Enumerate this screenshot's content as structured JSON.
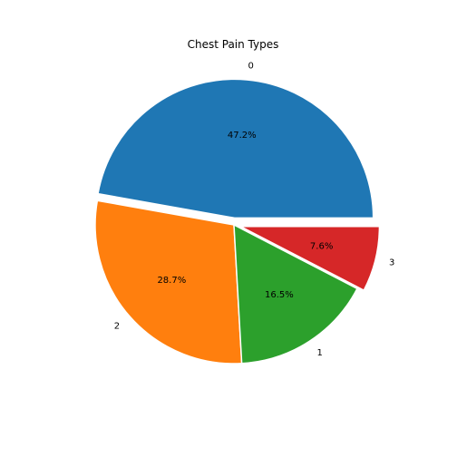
{
  "chart_data": {
    "type": "pie",
    "title": "Chest Pain Types",
    "labels": [
      "0",
      "2",
      "1",
      "3"
    ],
    "values": [
      47.2,
      28.7,
      16.5,
      7.6
    ],
    "value_labels": [
      "47.2%",
      "28.7%",
      "16.5%",
      "7.6%"
    ],
    "colors": [
      "#1f77b4",
      "#ff7f0e",
      "#2ca02c",
      "#d62728"
    ],
    "explode": [
      0.05,
      0,
      0,
      0.05
    ],
    "start_angle_deg": 0,
    "direction": "counterclockwise",
    "legend": "none"
  }
}
